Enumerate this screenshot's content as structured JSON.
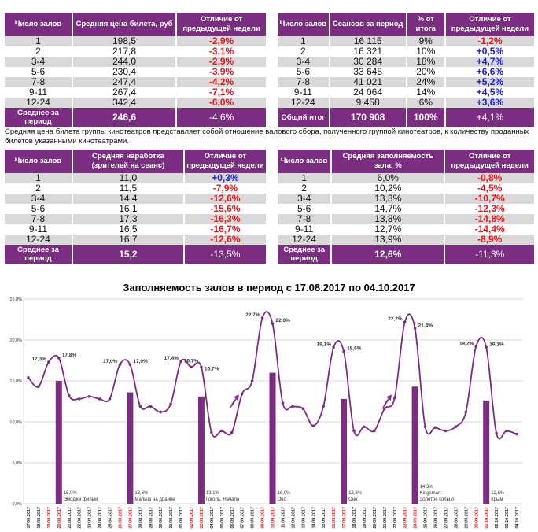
{
  "table_price": {
    "headers": [
      "Число залов",
      "Средняя цена билета, руб",
      "Отличие от предыдущей недели"
    ],
    "rows": [
      [
        "1",
        "198,5",
        "-2,9%"
      ],
      [
        "2",
        "217,8",
        "-3,1%"
      ],
      [
        "3-4",
        "244,0",
        "-2,9%"
      ],
      [
        "5-6",
        "230,4",
        "-3,9%"
      ],
      [
        "7-8",
        "247,4",
        "-4,2%"
      ],
      [
        "9-11",
        "267,4",
        "-7,1%"
      ],
      [
        "12-24",
        "342,4",
        "-6,0%"
      ]
    ],
    "total": [
      "Среднее за период",
      "246,6",
      "-4,6%"
    ]
  },
  "table_sessions": {
    "headers": [
      "Число залов",
      "Сеансов за период",
      "% от итога",
      "Отличие от предыдущей недели"
    ],
    "rows": [
      [
        "1",
        "16 115",
        "9%",
        "-1,2%"
      ],
      [
        "2",
        "16 321",
        "10%",
        "+0,5%"
      ],
      [
        "3-4",
        "30 284",
        "18%",
        "+4,7%"
      ],
      [
        "5-6",
        "33 645",
        "20%",
        "+6,6%"
      ],
      [
        "7-8",
        "41 021",
        "24%",
        "+5,2%"
      ],
      [
        "9-11",
        "24 064",
        "14%",
        "+4,5%"
      ],
      [
        "12-24",
        "9 458",
        "6%",
        "+3,6%"
      ]
    ],
    "total": [
      "Общий итог",
      "170 908",
      "100%",
      "+4,1%"
    ]
  },
  "note": "Средняя цена билета группы кинотеатров представляет собой отношение валового сбора, полученного группой кинотеатров, к количеству проданных билетов указанными кинотеатрами.",
  "table_load": {
    "headers": [
      "Число залов",
      "Средняя наработка (зрителей на сеанс)",
      "Отличие от предыдущей недели"
    ],
    "rows": [
      [
        "1",
        "11,0",
        "+0,3%"
      ],
      [
        "2",
        "11,5",
        "-7,9%"
      ],
      [
        "3-4",
        "14,4",
        "-12,6%"
      ],
      [
        "5-6",
        "16,1",
        "-15,6%"
      ],
      [
        "7-8",
        "17,3",
        "-16,3%"
      ],
      [
        "9-11",
        "16,5",
        "-16,7%"
      ],
      [
        "12-24",
        "16,7",
        "-12,6%"
      ]
    ],
    "total": [
      "Среднее за период",
      "15,2",
      "-13,5%"
    ]
  },
  "table_occupancy": {
    "headers": [
      "Число залов",
      "Средняя заполняемость зала, %",
      "Отличие от предыдущей недели"
    ],
    "rows": [
      [
        "1",
        "6,0%",
        "-0,8%"
      ],
      [
        "2",
        "10,2%",
        "-4,5%"
      ],
      [
        "3-4",
        "13,3%",
        "-10,7%"
      ],
      [
        "5-6",
        "14,7%",
        "-12,3%"
      ],
      [
        "7-8",
        "13,8%",
        "-14,8%"
      ],
      [
        "9-11",
        "12,7%",
        "-14,4%"
      ],
      [
        "12-24",
        "13,9%",
        "-8,9%"
      ]
    ],
    "total": [
      "Среднее за период",
      "12,6%",
      "-11,3%"
    ]
  },
  "colors": {
    "header": "#7b2d82",
    "negative": "#e8141b",
    "positive": "#1a1adb",
    "weekend": "#e8141b",
    "line": "#7b2d82"
  },
  "chart_data": {
    "type": "line+bar",
    "title": "Заполняемость залов в период с 17.08.2017 по 04.10.2017",
    "ylim": [
      0,
      25
    ],
    "yticks": [
      "0,0%",
      "5,0%",
      "10,0%",
      "15,0%",
      "20,0%",
      "25,0%"
    ],
    "grid": true,
    "x": [
      "17.08.2017",
      "18.08.2017",
      "19.08.2017",
      "20.08.2017",
      "21.08.2017",
      "22.08.2017",
      "23.08.2017",
      "24.08.2017",
      "25.08.2017",
      "26.08.2017",
      "27.08.2017",
      "28.08.2017",
      "29.08.2017",
      "30.08.2017",
      "31.08.2017",
      "01.09.2017",
      "02.09.2017",
      "03.09.2017",
      "04.09.2017",
      "05.09.2017",
      "06.09.2017",
      "07.09.2017",
      "08.09.2017",
      "09.09.2017",
      "10.09.2017",
      "11.09.2017",
      "12.09.2017",
      "13.09.2017",
      "14.09.2017",
      "15.09.2017",
      "16.09.2017",
      "17.09.2017",
      "18.09.2017",
      "19.09.2017",
      "20.09.2017",
      "21.09.2017",
      "22.09.2017",
      "23.09.2017",
      "24.09.2017",
      "25.09.2017",
      "26.09.2017",
      "27.09.2017",
      "28.09.2017",
      "29.09.2017",
      "30.09.2017",
      "01.10.2017",
      "02.10.2017",
      "03.10.2017",
      "04.10.2017"
    ],
    "weekend_dates": [
      "19.08.2017",
      "20.08.2017",
      "26.08.2017",
      "27.08.2017",
      "02.09.2017",
      "03.09.2017",
      "09.09.2017",
      "10.09.2017",
      "16.09.2017",
      "17.09.2017",
      "23.09.2017",
      "24.09.2017",
      "30.09.2017",
      "01.10.2017"
    ],
    "line_values": [
      15.4,
      14.3,
      17.3,
      17.8,
      13.2,
      12.8,
      13.1,
      12.8,
      12.8,
      17.0,
      17.0,
      11.9,
      11.9,
      11.2,
      12.2,
      17.4,
      16.7,
      16.7,
      8.7,
      8.9,
      8.7,
      13.4,
      15.0,
      22.7,
      22.0,
      12.3,
      11.9,
      11.6,
      9.5,
      11.9,
      19.1,
      18.6,
      8.9,
      9.4,
      8.9,
      11.6,
      12.9,
      22.2,
      21.4,
      9.4,
      9.3,
      8.9,
      9.4,
      11.2,
      19.2,
      19.1,
      8.6,
      8.9,
      8.5
    ],
    "line_labels": [
      {
        "date": "19.08.2017",
        "text": "17,3%"
      },
      {
        "date": "20.08.2017",
        "text": "17,8%"
      },
      {
        "date": "26.08.2017",
        "text": "17,0%"
      },
      {
        "date": "27.08.2017",
        "text": "17,0%"
      },
      {
        "date": "01.09.2017",
        "text": "17,4%"
      },
      {
        "date": "02.09.2017",
        "text": "16,7%"
      },
      {
        "date": "03.09.2017",
        "text": "16,7%"
      },
      {
        "date": "09.09.2017",
        "text": "22,7%"
      },
      {
        "date": "10.09.2017",
        "text": "22,0%"
      },
      {
        "date": "16.09.2017",
        "text": "19,1%"
      },
      {
        "date": "17.09.2017",
        "text": "18,6%"
      },
      {
        "date": "23.09.2017",
        "text": "22,2%"
      },
      {
        "date": "24.09.2017",
        "text": "21,4%"
      },
      {
        "date": "30.09.2017",
        "text": "19,2%"
      },
      {
        "date": "01.10.2017",
        "text": "19,1%"
      }
    ],
    "bars": [
      {
        "date": "20.08.2017",
        "value": 15.0,
        "label": "15,0%",
        "film": "Эмоджи фильм"
      },
      {
        "date": "27.08.2017",
        "value": 13.6,
        "label": "13,6%",
        "film": "Малыш на драйве"
      },
      {
        "date": "03.09.2017",
        "value": 13.1,
        "label": "13,1%",
        "film": "Гоголь. Начало"
      },
      {
        "date": "10.09.2017",
        "value": 16.0,
        "label": "16,0%",
        "film": "Оно"
      },
      {
        "date": "17.09.2017",
        "value": 12.8,
        "label": "12,8%",
        "film": "Оно"
      },
      {
        "date": "24.09.2017",
        "value": 14.3,
        "label": "14,3%",
        "film": "Kingsman: Золотое кольцо"
      },
      {
        "date": "01.10.2017",
        "value": 12.6,
        "label": "12,6%",
        "film": "Крым"
      }
    ],
    "arrows": [
      "06.09.2017",
      "21.09.2017"
    ]
  }
}
